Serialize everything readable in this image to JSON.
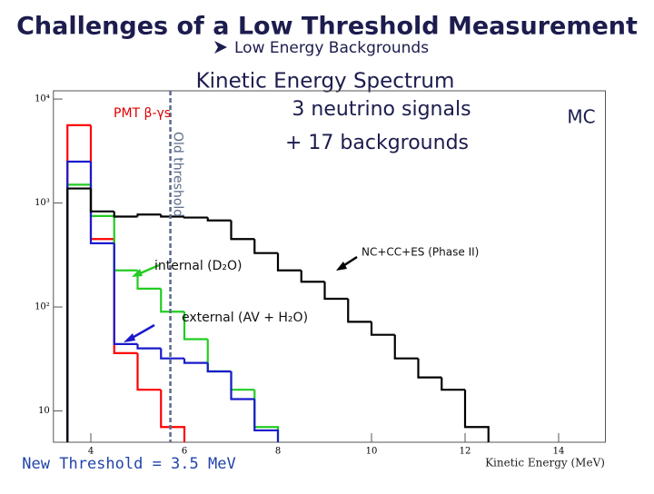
{
  "chart_data": {
    "type": "histogram",
    "title": "Challenges of a Low Threshold Measurement",
    "subtitle": "Low Energy Backgrounds",
    "plot_title": "Kinetic Energy Spectrum",
    "annotations": [
      "3 neutrino signals",
      "+ 17 backgrounds",
      "MC",
      "New Threshold = 3.5 MeV"
    ],
    "xlabel": "Kinetic Energy (MeV)",
    "log_y": true,
    "xlim": [
      3.2,
      15
    ],
    "ylim": [
      5,
      12000
    ],
    "xticks": [
      4,
      6,
      8,
      10,
      12,
      14
    ],
    "yticks": [
      {
        "value": 10000,
        "label": "10⁴"
      },
      {
        "value": 1000,
        "label": "10³"
      },
      {
        "value": 100,
        "label": "10²"
      },
      10
    ],
    "bins": [
      3.5,
      4,
      4.5,
      5,
      5.5,
      6,
      6.5,
      7,
      7.5,
      8,
      8.5,
      9,
      9.5,
      10,
      10.5,
      11,
      11.5,
      12,
      12.5
    ],
    "series": [
      {
        "name": "PMT β-γs",
        "color": "#ff0000",
        "values": [
          5600,
          450,
          36,
          16,
          7,
          null,
          null,
          null,
          null,
          null,
          null,
          null,
          null,
          null,
          null,
          null,
          null,
          null
        ]
      },
      {
        "name": "internal (D₂O)",
        "color": "#22cc22",
        "values": [
          1500,
          750,
          225,
          150,
          90,
          49,
          24,
          16,
          7,
          null,
          null,
          null,
          null,
          null,
          null,
          null,
          null,
          null
        ]
      },
      {
        "name": "external (AV + H₂O)",
        "color": "#1a1acc",
        "values": [
          2500,
          410,
          44,
          40,
          32,
          29,
          24,
          13,
          6.5,
          null,
          null,
          null,
          null,
          null,
          null,
          null,
          null,
          null
        ]
      },
      {
        "name": "NC+CC+ES (Phase II)",
        "color": "#000000",
        "values": [
          1380,
          830,
          740,
          775,
          740,
          725,
          680,
          450,
          330,
          225,
          175,
          120,
          72,
          54,
          32,
          21,
          16,
          7
        ]
      }
    ],
    "vlines": [
      {
        "x": 5.7,
        "label": "Old threshold"
      }
    ]
  }
}
